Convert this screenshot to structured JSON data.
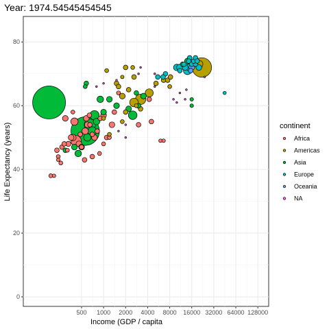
{
  "chart_data": {
    "type": "scatter",
    "title": "Year: 1974.54545454545",
    "xlabel": "Income (GDP / capita",
    "ylabel": "Life Expectancy (years)",
    "x_scale": "log2",
    "xlim": [
      80,
      180000
    ],
    "ylim": [
      -3,
      88
    ],
    "x_ticks": [
      500,
      1000,
      2000,
      4000,
      8000,
      16000,
      32000,
      64000,
      128000
    ],
    "x_tick_labels": [
      "500",
      "1000",
      "2000",
      "4000",
      "8000",
      "16000",
      "32000",
      "64000",
      "128000"
    ],
    "y_ticks": [
      0,
      20,
      40,
      60,
      80
    ],
    "y_tick_labels": [
      "0",
      "20",
      "40",
      "60",
      "80"
    ],
    "grid": true,
    "legend": {
      "title": "continent",
      "placement": "right",
      "entries": [
        "Africa",
        "Americas",
        "Asia",
        "Europe",
        "Oceania",
        "NA"
      ]
    },
    "colors": {
      "Africa": "#F8766D",
      "Americas": "#B79F00",
      "Asia": "#00BA38",
      "Europe": "#00BFC4",
      "Oceania": "#619CFF",
      "NA": "#F564E3"
    },
    "series": [
      {
        "name": "Africa",
        "points": [
          {
            "x": 190,
            "y": 38,
            "pop": 1.5
          },
          {
            "x": 210,
            "y": 38,
            "pop": 1.2
          },
          {
            "x": 240,
            "y": 44,
            "pop": 1.5
          },
          {
            "x": 230,
            "y": 46,
            "pop": 2
          },
          {
            "x": 260,
            "y": 42,
            "pop": 1.5
          },
          {
            "x": 240,
            "y": 43,
            "pop": 1.2
          },
          {
            "x": 270,
            "y": 47,
            "pop": 2
          },
          {
            "x": 290,
            "y": 48,
            "pop": 2
          },
          {
            "x": 330,
            "y": 48,
            "pop": 2.5
          },
          {
            "x": 360,
            "y": 50,
            "pop": 3
          },
          {
            "x": 380,
            "y": 50,
            "pop": 4
          },
          {
            "x": 420,
            "y": 49,
            "pop": 10
          },
          {
            "x": 460,
            "y": 48,
            "pop": 3
          },
          {
            "x": 500,
            "y": 47,
            "pop": 2
          },
          {
            "x": 480,
            "y": 51,
            "pop": 2
          },
          {
            "x": 560,
            "y": 52,
            "pop": 4
          },
          {
            "x": 600,
            "y": 54,
            "pop": 3
          },
          {
            "x": 650,
            "y": 54,
            "pop": 2
          },
          {
            "x": 700,
            "y": 51,
            "pop": 2
          },
          {
            "x": 750,
            "y": 50,
            "pop": 3
          },
          {
            "x": 820,
            "y": 52,
            "pop": 2
          },
          {
            "x": 900,
            "y": 56,
            "pop": 2
          },
          {
            "x": 1000,
            "y": 57,
            "pop": 3
          },
          {
            "x": 580,
            "y": 56,
            "pop": 3
          },
          {
            "x": 640,
            "y": 57,
            "pop": 2
          },
          {
            "x": 550,
            "y": 43,
            "pop": 2
          },
          {
            "x": 700,
            "y": 44,
            "pop": 2
          },
          {
            "x": 880,
            "y": 45,
            "pop": 1.5
          },
          {
            "x": 1000,
            "y": 48,
            "pop": 1.5
          },
          {
            "x": 1100,
            "y": 50,
            "pop": 2
          },
          {
            "x": 1200,
            "y": 50,
            "pop": 1.5
          },
          {
            "x": 1300,
            "y": 54,
            "pop": 3
          },
          {
            "x": 400,
            "y": 55,
            "pop": 5
          },
          {
            "x": 380,
            "y": 58,
            "pop": 1.5
          },
          {
            "x": 3000,
            "y": 54,
            "pop": 2
          },
          {
            "x": 4500,
            "y": 55,
            "pop": 2
          },
          {
            "x": 4200,
            "y": 62,
            "pop": 2
          },
          {
            "x": 6000,
            "y": 49,
            "pop": 1.2
          },
          {
            "x": 6600,
            "y": 49,
            "pop": 1.2
          },
          {
            "x": 1400,
            "y": 58,
            "pop": 2
          },
          {
            "x": 1600,
            "y": 64,
            "pop": 1.5
          },
          {
            "x": 300,
            "y": 56,
            "pop": 3
          },
          {
            "x": 320,
            "y": 46,
            "pop": 1.5
          }
        ]
      },
      {
        "name": "Americas",
        "points": [
          {
            "x": 1100,
            "y": 71,
            "pop": 1.5
          },
          {
            "x": 2000,
            "y": 72,
            "pop": 2
          },
          {
            "x": 2500,
            "y": 72,
            "pop": 1.5
          },
          {
            "x": 1800,
            "y": 69,
            "pop": 1.2
          },
          {
            "x": 1500,
            "y": 67,
            "pop": 2
          },
          {
            "x": 1600,
            "y": 66,
            "pop": 2
          },
          {
            "x": 2200,
            "y": 65,
            "pop": 2
          },
          {
            "x": 1800,
            "y": 63,
            "pop": 3
          },
          {
            "x": 2600,
            "y": 61,
            "pop": 7
          },
          {
            "x": 3200,
            "y": 59,
            "pop": 2
          },
          {
            "x": 2800,
            "y": 60,
            "pop": 1.5
          },
          {
            "x": 2000,
            "y": 58,
            "pop": 2
          },
          {
            "x": 3200,
            "y": 62,
            "pop": 10
          },
          {
            "x": 4200,
            "y": 64,
            "pop": 6
          },
          {
            "x": 5200,
            "y": 67,
            "pop": 2
          },
          {
            "x": 6600,
            "y": 68,
            "pop": 2
          },
          {
            "x": 7500,
            "y": 68,
            "pop": 2
          },
          {
            "x": 8200,
            "y": 69,
            "pop": 2
          },
          {
            "x": 8000,
            "y": 66,
            "pop": 1.5
          },
          {
            "x": 1000,
            "y": 56,
            "pop": 1.5
          },
          {
            "x": 1800,
            "y": 55,
            "pop": 1.5
          },
          {
            "x": 1200,
            "y": 51,
            "pop": 1.5
          },
          {
            "x": 2600,
            "y": 69,
            "pop": 2
          },
          {
            "x": 22000,
            "y": 72,
            "pop": 35
          },
          {
            "x": 20000,
            "y": 73,
            "pop": 6
          }
        ]
      },
      {
        "name": "Asia",
        "points": [
          {
            "x": 180,
            "y": 61,
            "pop": 100
          },
          {
            "x": 560,
            "y": 52,
            "pop": 75
          },
          {
            "x": 650,
            "y": 54,
            "pop": 12
          },
          {
            "x": 700,
            "y": 52,
            "pop": 7
          },
          {
            "x": 600,
            "y": 50,
            "pop": 5
          },
          {
            "x": 500,
            "y": 47,
            "pop": 3
          },
          {
            "x": 450,
            "y": 45,
            "pop": 4
          },
          {
            "x": 750,
            "y": 57,
            "pop": 8
          },
          {
            "x": 800,
            "y": 55,
            "pop": 4
          },
          {
            "x": 1000,
            "y": 58,
            "pop": 3
          },
          {
            "x": 900,
            "y": 62,
            "pop": 4
          },
          {
            "x": 1200,
            "y": 62,
            "pop": 3
          },
          {
            "x": 1500,
            "y": 60,
            "pop": 3
          },
          {
            "x": 2500,
            "y": 57,
            "pop": 7
          },
          {
            "x": 2200,
            "y": 59,
            "pop": 3
          },
          {
            "x": 3000,
            "y": 60,
            "pop": 2
          },
          {
            "x": 3500,
            "y": 63,
            "pop": 3
          },
          {
            "x": 2800,
            "y": 64,
            "pop": 2
          },
          {
            "x": 16000,
            "y": 60,
            "pop": 1.2
          },
          {
            "x": 16000,
            "y": 62,
            "pop": 1.2
          },
          {
            "x": 400,
            "y": 47,
            "pop": 3
          },
          {
            "x": 300,
            "y": 46,
            "pop": 2
          },
          {
            "x": 580,
            "y": 67,
            "pop": 2
          },
          {
            "x": 560,
            "y": 66,
            "pop": 1.5
          },
          {
            "x": 12000,
            "y": 73,
            "pop": 2
          },
          {
            "x": 14000,
            "y": 74,
            "pop": 3
          }
        ]
      },
      {
        "name": "Europe",
        "points": [
          {
            "x": 10000,
            "y": 72,
            "pop": 4
          },
          {
            "x": 11000,
            "y": 72,
            "pop": 4
          },
          {
            "x": 13000,
            "y": 72,
            "pop": 3
          },
          {
            "x": 14000,
            "y": 71,
            "pop": 6
          },
          {
            "x": 15000,
            "y": 72,
            "pop": 5
          },
          {
            "x": 16000,
            "y": 73,
            "pop": 2
          },
          {
            "x": 18000,
            "y": 73,
            "pop": 2
          },
          {
            "x": 17000,
            "y": 74,
            "pop": 2
          },
          {
            "x": 15000,
            "y": 75,
            "pop": 2
          },
          {
            "x": 18000,
            "y": 75,
            "pop": 2
          },
          {
            "x": 14500,
            "y": 74,
            "pop": 2
          },
          {
            "x": 12500,
            "y": 73,
            "pop": 2
          },
          {
            "x": 7000,
            "y": 70,
            "pop": 2
          },
          {
            "x": 6500,
            "y": 69,
            "pop": 2
          },
          {
            "x": 5500,
            "y": 69,
            "pop": 2
          },
          {
            "x": 20000,
            "y": 72,
            "pop": 3
          },
          {
            "x": 19000,
            "y": 74,
            "pop": 2
          },
          {
            "x": 11000,
            "y": 71,
            "pop": 2
          },
          {
            "x": 45000,
            "y": 64,
            "pop": 1
          }
        ]
      },
      {
        "name": "Oceania",
        "points": [
          {
            "x": 16000,
            "y": 72,
            "pop": 3
          },
          {
            "x": 15500,
            "y": 71,
            "pop": 2
          }
        ]
      },
      {
        "name": "NA",
        "points": [
          {
            "x": 5000,
            "y": 70,
            "pop": 0.3
          },
          {
            "x": 3200,
            "y": 72,
            "pop": 0.3
          },
          {
            "x": 9000,
            "y": 62,
            "pop": 0.3
          },
          {
            "x": 10000,
            "y": 61,
            "pop": 0.3
          },
          {
            "x": 11000,
            "y": 64,
            "pop": 0.3
          },
          {
            "x": 13500,
            "y": 65,
            "pop": 0.3
          },
          {
            "x": 13000,
            "y": 62,
            "pop": 0.3
          },
          {
            "x": 1600,
            "y": 52,
            "pop": 0.3
          },
          {
            "x": 2000,
            "y": 50,
            "pop": 0.3
          },
          {
            "x": 2000,
            "y": 54,
            "pop": 0.3
          },
          {
            "x": 1000,
            "y": 67,
            "pop": 0.3
          },
          {
            "x": 800,
            "y": 66,
            "pop": 0.3
          },
          {
            "x": 1500,
            "y": 68,
            "pop": 0.3
          },
          {
            "x": 5000,
            "y": 66,
            "pop": 0.3
          },
          {
            "x": 24000,
            "y": 69,
            "pop": 0.3
          },
          {
            "x": 3000,
            "y": 70,
            "pop": 0.3
          }
        ]
      }
    ]
  }
}
